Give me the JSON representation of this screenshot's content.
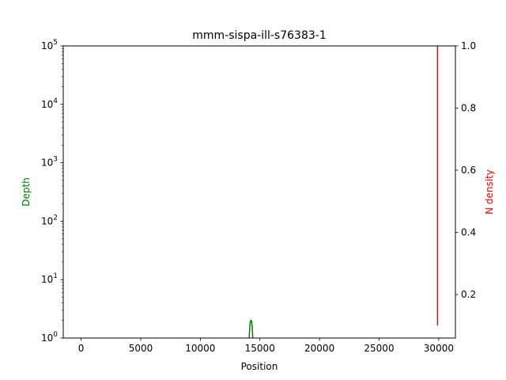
{
  "chart_data": {
    "type": "line",
    "title": "mmm-sispa-ill-s76383-1",
    "xlabel": "Position",
    "ylabel": "Depth",
    "y2label": "N density",
    "xlim": [
      -1500,
      31400
    ],
    "ylim": [
      1,
      100000
    ],
    "y2lim": [
      0.06,
      1.0
    ],
    "yscale": "log",
    "grid": false,
    "x_ticks": [
      0,
      5000,
      10000,
      15000,
      20000,
      25000,
      30000
    ],
    "y_ticks": [
      {
        "value": 1,
        "base": "10",
        "exp": "0"
      },
      {
        "value": 10,
        "base": "10",
        "exp": "1"
      },
      {
        "value": 100,
        "base": "10",
        "exp": "2"
      },
      {
        "value": 1000,
        "base": "10",
        "exp": "3"
      },
      {
        "value": 10000,
        "base": "10",
        "exp": "4"
      },
      {
        "value": 100000,
        "base": "10",
        "exp": "5"
      }
    ],
    "y2_ticks": [
      0.2,
      0.4,
      0.6,
      0.8,
      1.0
    ],
    "series": [
      {
        "axis": "left",
        "color": "#008000",
        "x": [
          14100,
          14150,
          14200,
          14250,
          14300,
          14350,
          14400
        ],
        "y": [
          1,
          1.6,
          1.95,
          2.0,
          1.95,
          1.6,
          1
        ]
      },
      {
        "axis": "right",
        "color": "#ff0000",
        "x": [
          29900,
          29900
        ],
        "y": [
          0.1,
          1.0
        ]
      }
    ]
  }
}
